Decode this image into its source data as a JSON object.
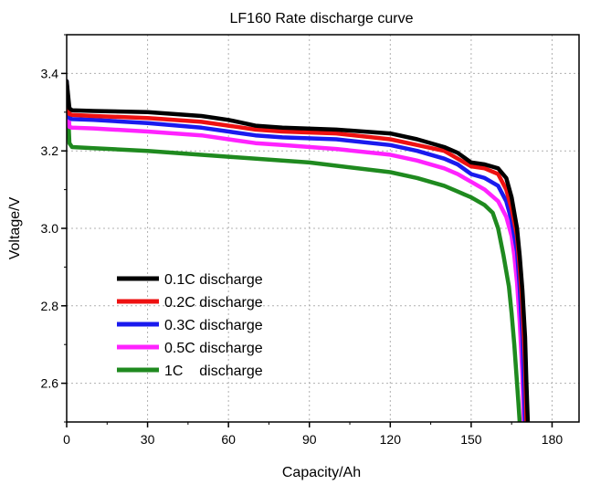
{
  "chart_data": {
    "type": "line",
    "title": "LF160 Rate discharge curve",
    "xlabel": "Capacity/Ah",
    "ylabel": "Voltage/V",
    "xlim": [
      0,
      190
    ],
    "ylim": [
      2.5,
      3.5
    ],
    "x_ticks": [
      "0",
      "30",
      "60",
      "90",
      "120",
      "150",
      "180"
    ],
    "y_ticks": [
      "2.6",
      "2.8",
      "3.0",
      "3.2",
      "3.4"
    ],
    "grid": true,
    "legend_position": "lower-left",
    "series": [
      {
        "name": "0.1C discharge",
        "color": "#000000",
        "x": [
          0,
          1,
          2,
          10,
          30,
          50,
          60,
          70,
          80,
          100,
          120,
          130,
          140,
          145,
          150,
          155,
          160,
          163,
          165,
          167,
          168,
          169,
          170,
          170.5,
          171
        ],
        "y": [
          3.38,
          3.31,
          3.305,
          3.303,
          3.3,
          3.29,
          3.28,
          3.265,
          3.26,
          3.255,
          3.245,
          3.23,
          3.21,
          3.195,
          3.17,
          3.165,
          3.155,
          3.13,
          3.08,
          3.0,
          2.93,
          2.84,
          2.72,
          2.6,
          2.5
        ]
      },
      {
        "name": "0.2C discharge",
        "color": "#ee1111",
        "x": [
          0,
          1,
          2,
          10,
          30,
          50,
          60,
          70,
          80,
          100,
          120,
          130,
          140,
          145,
          150,
          155,
          160,
          163,
          165,
          167,
          168,
          169,
          170,
          170.5
        ],
        "y": [
          3.37,
          3.295,
          3.293,
          3.29,
          3.285,
          3.275,
          3.265,
          3.255,
          3.25,
          3.245,
          3.23,
          3.215,
          3.2,
          3.18,
          3.16,
          3.155,
          3.14,
          3.1,
          3.05,
          2.98,
          2.9,
          2.8,
          2.65,
          2.5
        ]
      },
      {
        "name": "0.3C discharge",
        "color": "#1a1aee",
        "x": [
          0,
          1,
          2,
          10,
          30,
          50,
          60,
          70,
          80,
          100,
          120,
          130,
          140,
          145,
          150,
          155,
          160,
          163,
          165,
          167,
          168,
          169,
          170
        ],
        "y": [
          3.38,
          3.285,
          3.282,
          3.28,
          3.272,
          3.26,
          3.25,
          3.24,
          3.235,
          3.23,
          3.215,
          3.2,
          3.18,
          3.165,
          3.14,
          3.13,
          3.11,
          3.07,
          3.02,
          2.94,
          2.85,
          2.72,
          2.5
        ]
      },
      {
        "name": "0.5C discharge",
        "color": "#ff22ff",
        "x": [
          0,
          1,
          2,
          10,
          30,
          50,
          60,
          70,
          80,
          100,
          120,
          130,
          140,
          145,
          150,
          155,
          160,
          163,
          165,
          166,
          167,
          168,
          169,
          169.5
        ],
        "y": [
          3.37,
          3.262,
          3.26,
          3.258,
          3.25,
          3.24,
          3.23,
          3.22,
          3.215,
          3.205,
          3.19,
          3.175,
          3.155,
          3.14,
          3.12,
          3.1,
          3.07,
          3.03,
          2.98,
          2.93,
          2.86,
          2.76,
          2.62,
          2.5
        ]
      },
      {
        "name": "1C    discharge",
        "color": "#1f8a1f",
        "x": [
          0,
          0.5,
          1,
          2,
          10,
          30,
          60,
          90,
          120,
          130,
          140,
          145,
          150,
          155,
          158,
          160,
          162,
          164,
          165,
          166,
          167,
          167.5,
          168
        ],
        "y": [
          3.37,
          3.3,
          3.22,
          3.21,
          3.207,
          3.2,
          3.185,
          3.17,
          3.145,
          3.13,
          3.11,
          3.095,
          3.08,
          3.06,
          3.04,
          3.0,
          2.93,
          2.85,
          2.78,
          2.7,
          2.6,
          2.55,
          2.5
        ]
      }
    ]
  }
}
